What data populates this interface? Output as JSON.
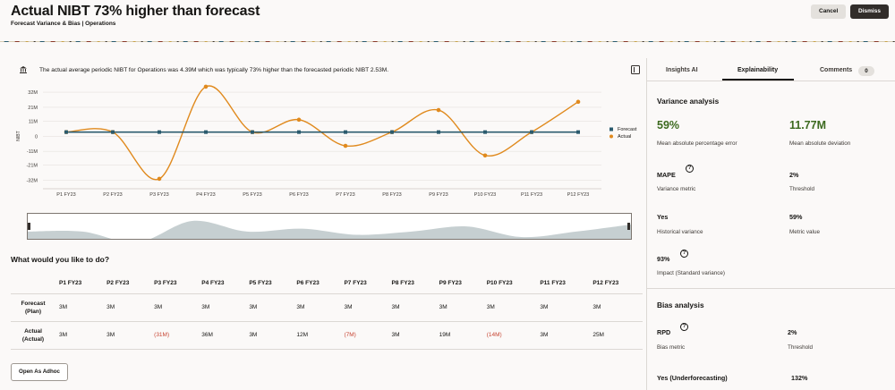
{
  "header": {
    "title": "Actual NIBT 73% higher than forecast",
    "subtitle": "Forecast Variance & Bias | Operations",
    "cancel_label": "Cancel",
    "dismiss_label": "Dismiss"
  },
  "insight": {
    "icon": "bank-icon",
    "text": "The actual average periodic NIBT for Operations was 4.39M which was typically 73% higher than the forecasted periodic NIBT 2.53M."
  },
  "chart_data": {
    "type": "line",
    "categories": [
      "P1 FY23",
      "P2 FY23",
      "P3 FY23",
      "P4 FY23",
      "P5 FY23",
      "P6 FY23",
      "P7 FY23",
      "P8 FY23",
      "P9 FY23",
      "P10 FY23",
      "P11 FY23",
      "P12 FY23"
    ],
    "series": [
      {
        "name": "Forecast",
        "values": [
          3,
          3,
          3,
          3,
          3,
          3,
          3,
          3,
          3,
          3,
          3,
          3
        ],
        "color": "#2b5b6e"
      },
      {
        "name": "Actual",
        "values": [
          3,
          3,
          -31,
          36,
          3,
          12,
          -7,
          3,
          19,
          -14,
          3,
          25
        ],
        "color": "#e08a1e"
      }
    ],
    "yticks": [
      "32M",
      "21M",
      "11M",
      "0",
      "-11M",
      "-21M",
      "-32M"
    ],
    "ytick_values": [
      32,
      21,
      11,
      0,
      -11,
      -21,
      -32
    ],
    "ylabel": "NIBT",
    "xlabel": "",
    "ylim": [
      -33,
      34
    ],
    "legend": "right",
    "grid": true
  },
  "overview_values": [
    3,
    3,
    -31,
    36,
    3,
    12,
    -7,
    3,
    19,
    -14,
    3,
    25
  ],
  "table": {
    "question": "What would you like to do?",
    "columns": [
      "P1 FY23",
      "P2 FY23",
      "P3 FY23",
      "P4 FY23",
      "P5 FY23",
      "P6 FY23",
      "P7 FY23",
      "P8 FY23",
      "P9 FY23",
      "P10 FY23",
      "P11 FY23",
      "P12 FY23"
    ],
    "rows": [
      {
        "label": "Forecast",
        "sublabel": "(Plan)",
        "cells": [
          "3M",
          "3M",
          "3M",
          "3M",
          "3M",
          "3M",
          "3M",
          "3M",
          "3M",
          "3M",
          "3M",
          "3M"
        ]
      },
      {
        "label": "Actual",
        "sublabel": "(Actual)",
        "cells": [
          "3M",
          "3M",
          "(31M)",
          "36M",
          "3M",
          "12M",
          "(7M)",
          "3M",
          "19M",
          "(14M)",
          "3M",
          "25M"
        ]
      }
    ],
    "adhoc_label": "Open As Adhoc"
  },
  "panel": {
    "tabs": {
      "insights": "Insights AI",
      "explain": "Explainability",
      "comments": "Comments",
      "comments_count": "0"
    },
    "variance": {
      "heading": "Variance analysis",
      "mape_value": "59%",
      "mape_label": "Mean absolute percentage error",
      "mad_value": "11.77M",
      "mad_label": "Mean absolute deviation",
      "metric_name": "MAPE",
      "metric_label": "Variance metric",
      "threshold_value": "2%",
      "threshold_label": "Threshold",
      "historical_value": "Yes",
      "historical_label": "Historical variance",
      "metric_value": "59%",
      "metric_value_label": "Metric value",
      "impact_value": "93%",
      "impact_label": "Impact (Standard variance)"
    },
    "bias": {
      "heading": "Bias analysis",
      "metric_name": "RPD",
      "metric_label": "Bias metric",
      "threshold_value": "2%",
      "threshold_label": "Threshold",
      "result_value": "Yes (Underforecasting)",
      "result_pct": "132%"
    }
  },
  "colors": {
    "accent_green": "#3c6a1f",
    "negative": "#c74634",
    "forecast": "#2b5b6e",
    "actual": "#e08a1e"
  }
}
